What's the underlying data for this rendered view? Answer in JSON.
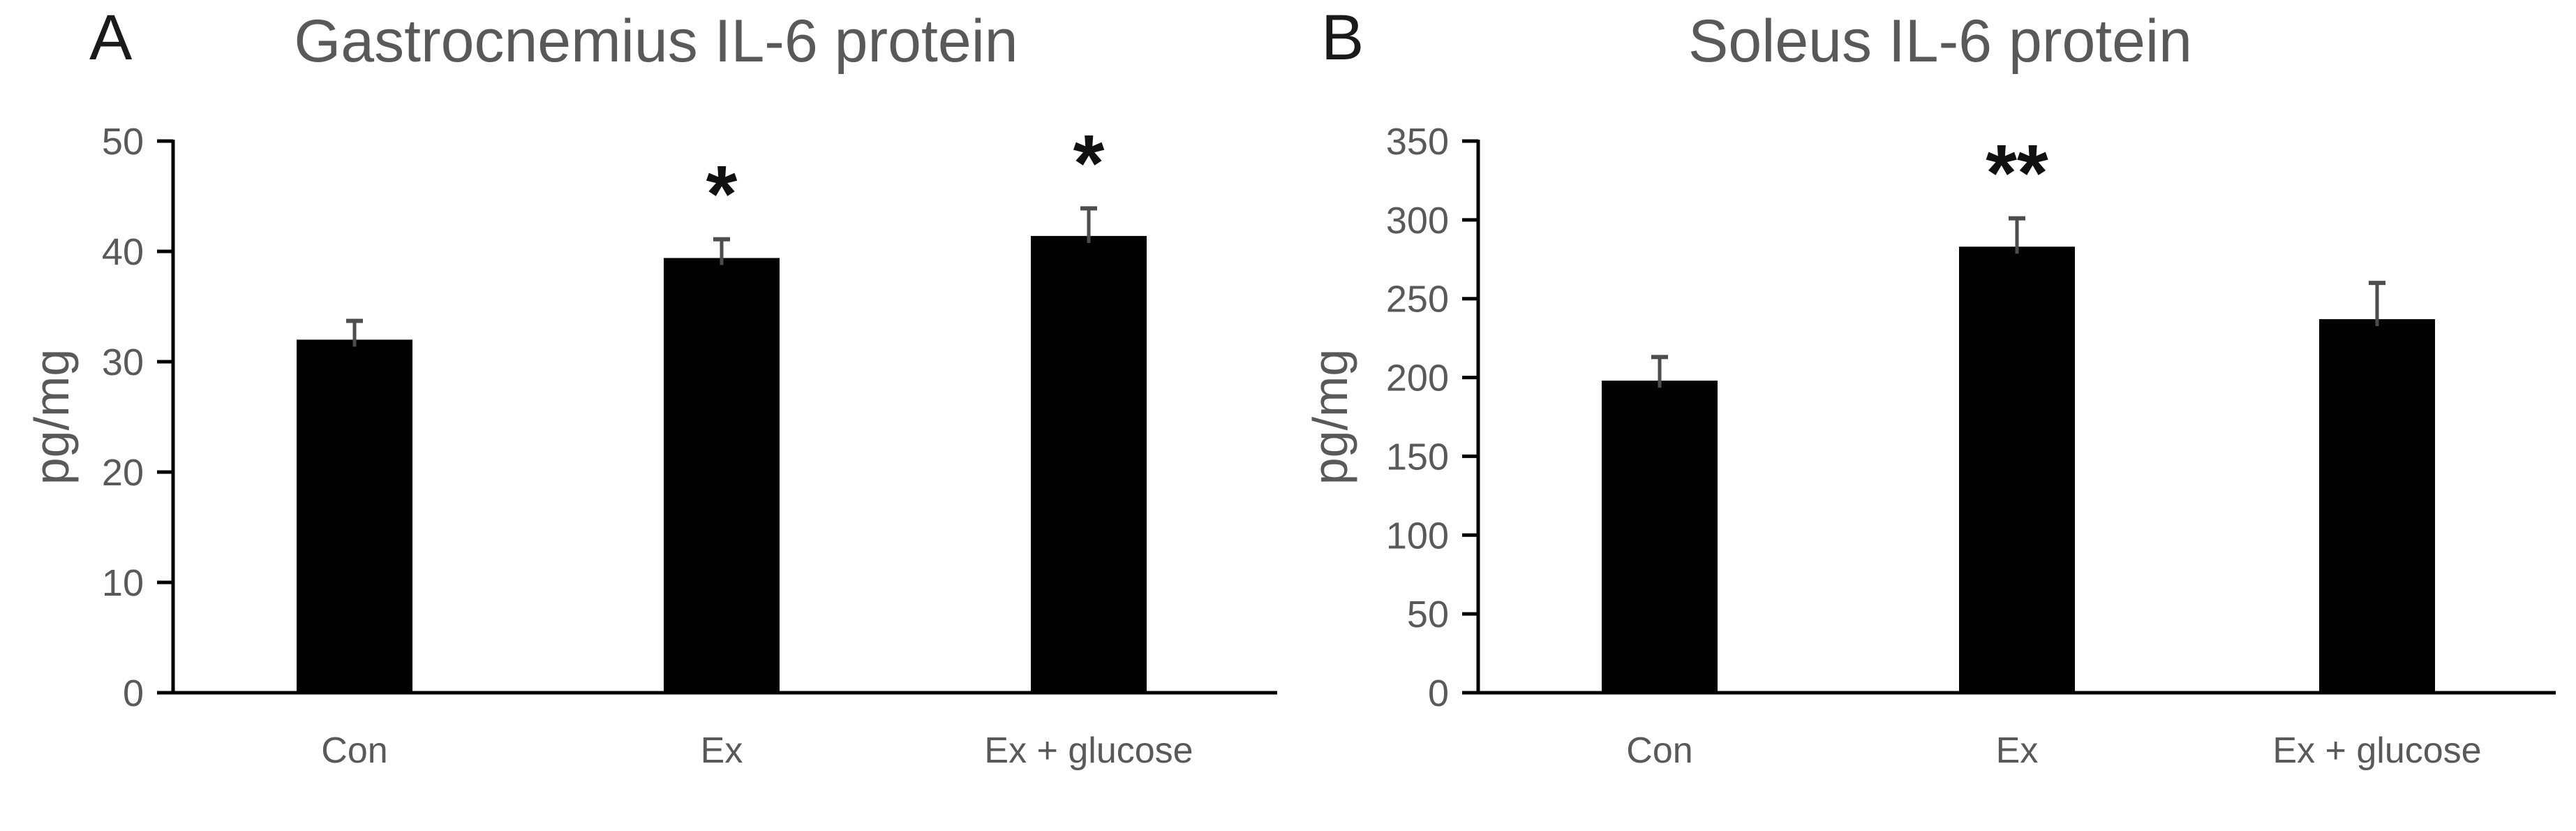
{
  "figure": {
    "background": "#ffffff"
  },
  "styles": {
    "bar_color": "#000000",
    "axis_color": "#000000",
    "error_bar_color": "#4d4d4d",
    "axis_text_color": "#595959",
    "title_color": "#595959",
    "panel_letter_color": "#1a1a1a",
    "significance_color": "#111111"
  },
  "chart_data": [
    {
      "type": "bar",
      "panel_letter": "A",
      "title": "Gastrocnemius IL-6 protein",
      "ylabel": "pg/mg",
      "xlabel": "",
      "categories": [
        "Con",
        "Ex",
        "Ex + glucose"
      ],
      "values": [
        32.0,
        39.4,
        41.4
      ],
      "errors_plus": [
        1.7,
        1.7,
        2.5
      ],
      "significance": [
        "",
        "*",
        "*"
      ],
      "ylim": [
        0,
        50
      ],
      "yticks": [
        0,
        10,
        20,
        30,
        40,
        50
      ],
      "grid": false,
      "legend": null,
      "bar_fill": "black",
      "error_bars": "upper only, capped"
    },
    {
      "type": "bar",
      "panel_letter": "B",
      "title": "Soleus IL-6 protein",
      "ylabel": "pg/mg",
      "xlabel": "",
      "categories": [
        "Con",
        "Ex",
        "Ex + glucose"
      ],
      "values": [
        198,
        283,
        237
      ],
      "errors_plus": [
        15,
        18,
        23
      ],
      "significance": [
        "",
        "**",
        ""
      ],
      "ylim": [
        0,
        350
      ],
      "yticks": [
        0,
        50,
        100,
        150,
        200,
        250,
        300,
        350
      ],
      "grid": false,
      "legend": null,
      "bar_fill": "black",
      "error_bars": "upper only, capped"
    }
  ]
}
